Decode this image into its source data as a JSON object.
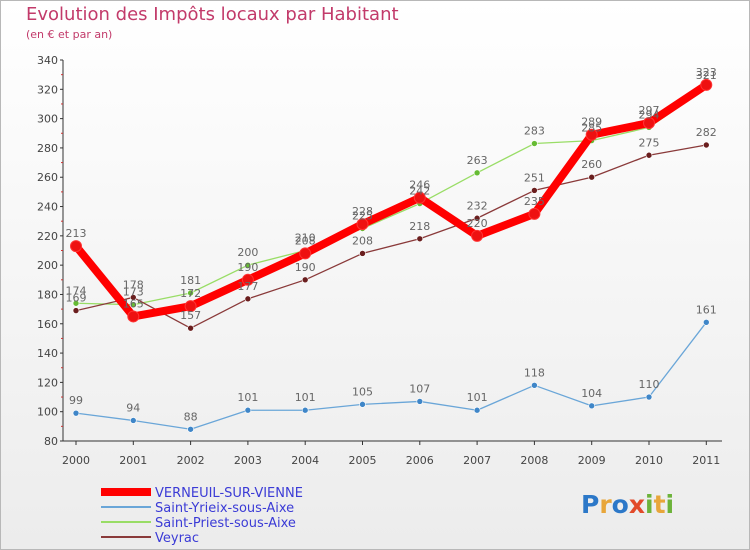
{
  "chart_data": {
    "type": "line",
    "title": "Evolution des Impôts locaux par Habitant",
    "subtitle": "(en € et par an)",
    "xlabel": "",
    "ylabel": "",
    "ylim": [
      80,
      340
    ],
    "y_ticks": [
      80,
      100,
      120,
      140,
      160,
      180,
      200,
      220,
      240,
      260,
      280,
      300,
      320,
      340
    ],
    "categories": [
      "2000",
      "2001",
      "2002",
      "2003",
      "2004",
      "2005",
      "2006",
      "2007",
      "2008",
      "2009",
      "2010",
      "2011"
    ],
    "grid": false,
    "legend_position": "bottom-left",
    "series": [
      {
        "name": "VERNEUIL-SUR-VIENNE",
        "color": "#ff0000",
        "marker_color": "#ee1111",
        "values": [
          213,
          165,
          172,
          190,
          208,
          228,
          246,
          220,
          235,
          289,
          297,
          323
        ],
        "labels": [
          "213",
          "165",
          "172",
          "190",
          "208",
          "228",
          "246",
          "220",
          "235",
          "289",
          "297",
          "323"
        ],
        "emphasis": true
      },
      {
        "name": "Saint-Yrieix-sous-Aixe",
        "color": "#6aa6d8",
        "marker_color": "#3f86c8",
        "values": [
          99,
          94,
          88,
          101,
          101,
          105,
          107,
          101,
          118,
          104,
          110,
          161
        ],
        "labels": [
          "99",
          "94",
          "88",
          "101",
          "101",
          "105",
          "107",
          "101",
          "118",
          "104",
          "110",
          "161"
        ],
        "emphasis": false
      },
      {
        "name": "Saint-Priest-sous-Aixe",
        "color": "#99dd66",
        "marker_color": "#66bb33",
        "values": [
          174,
          173,
          181,
          200,
          210,
          225,
          242,
          263,
          283,
          285,
          294,
          321
        ],
        "labels": [
          "174",
          "173",
          "181",
          "200",
          "210",
          "225",
          "242",
          "263",
          "283",
          "285",
          "294",
          "321"
        ],
        "emphasis": false
      },
      {
        "name": "Veyrac",
        "color": "#8a3a3a",
        "marker_color": "#6a1e1e",
        "values": [
          169,
          178,
          157,
          177,
          190,
          208,
          218,
          232,
          251,
          260,
          275,
          282
        ],
        "labels": [
          "169",
          "178",
          "157",
          "177",
          "190",
          "208",
          "218",
          "232",
          "251",
          "260",
          "275",
          "282"
        ],
        "emphasis": false
      }
    ]
  },
  "logo": {
    "letters": [
      "P",
      "r",
      "o",
      "x",
      "i",
      "t",
      "i"
    ]
  }
}
